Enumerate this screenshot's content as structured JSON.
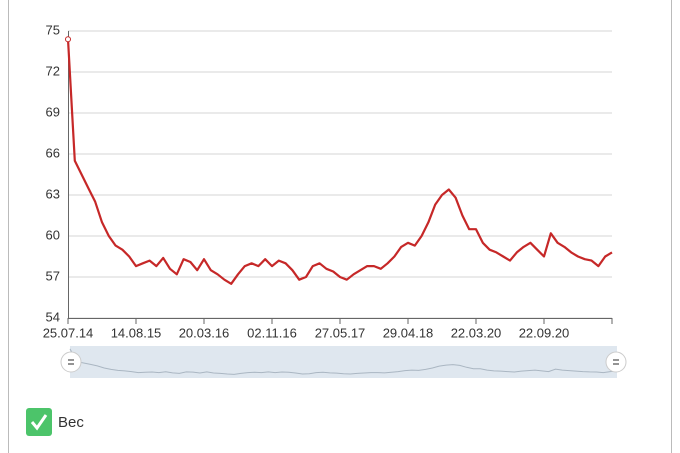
{
  "chart_data": {
    "type": "line",
    "categories": [
      "25.07.14",
      null,
      null,
      null,
      null,
      null,
      null,
      null,
      null,
      null,
      "14.08.15",
      null,
      null,
      null,
      null,
      null,
      null,
      null,
      null,
      null,
      "20.03.16",
      null,
      null,
      null,
      null,
      null,
      null,
      null,
      null,
      null,
      "02.11.16",
      null,
      null,
      null,
      null,
      null,
      null,
      null,
      null,
      null,
      "27.05.17",
      null,
      null,
      null,
      null,
      null,
      null,
      null,
      null,
      null,
      "29.04.18",
      null,
      null,
      null,
      null,
      null,
      null,
      null,
      null,
      null,
      "22.03.20",
      null,
      null,
      null,
      null,
      null,
      null,
      null,
      null,
      null,
      "22.09.20",
      null,
      null,
      null,
      null,
      null,
      null,
      null,
      null,
      null,
      null
    ],
    "series": [
      {
        "name": "Вес",
        "color": "#c62828",
        "values": [
          74.4,
          65.5,
          64.5,
          63.5,
          62.5,
          61,
          60,
          59.3,
          59,
          58.5,
          57.8,
          58,
          58.2,
          57.8,
          58.4,
          57.6,
          57.2,
          58.3,
          58.1,
          57.5,
          58.3,
          57.5,
          57.2,
          56.8,
          56.5,
          57.2,
          57.8,
          58,
          57.8,
          58.3,
          57.8,
          58.2,
          58,
          57.5,
          56.8,
          57,
          57.8,
          58,
          57.6,
          57.4,
          57,
          56.8,
          57.2,
          57.5,
          57.8,
          57.8,
          57.6,
          58,
          58.5,
          59.2,
          59.5,
          59.3,
          60,
          61,
          62.3,
          63,
          63.4,
          62.8,
          61.5,
          60.5,
          60.5,
          59.5,
          59,
          58.8,
          58.5,
          58.2,
          58.8,
          59.2,
          59.5,
          59,
          58.5,
          60.2,
          59.5,
          59.2,
          58.8,
          58.5,
          58.3,
          58.2,
          57.8,
          58.5,
          58.8
        ]
      }
    ],
    "ylim": [
      54,
      75
    ],
    "yticks": [
      54,
      57,
      60,
      63,
      66,
      69,
      72,
      75
    ],
    "grid": true
  }
}
